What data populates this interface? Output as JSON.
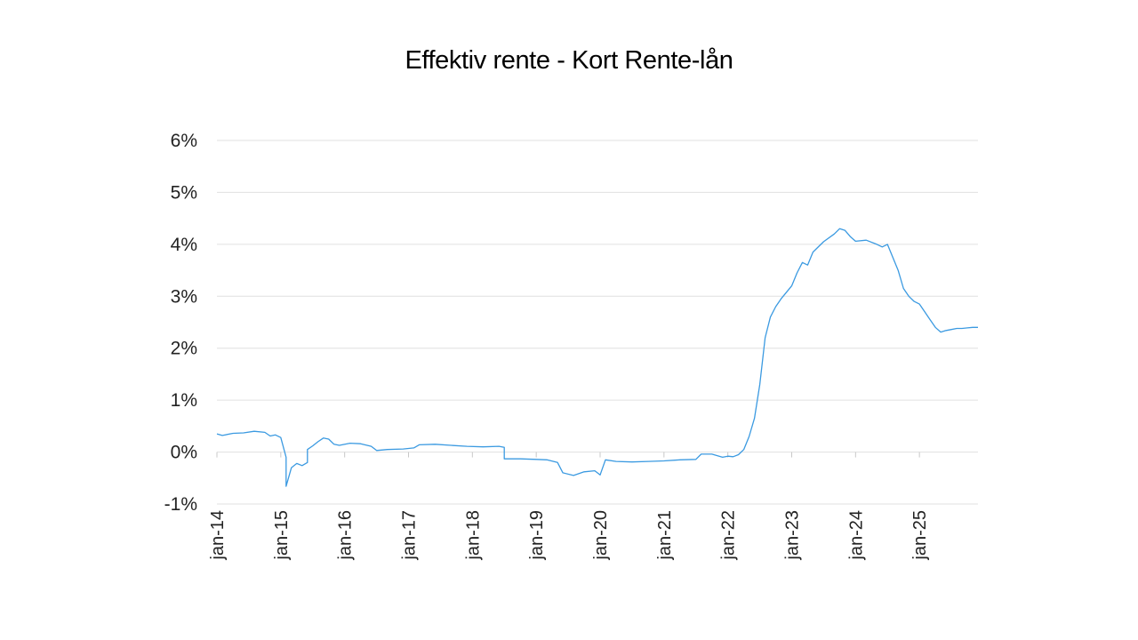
{
  "chart_data": {
    "type": "line",
    "title": "Effektiv rente - Kort Rente-lån",
    "xlabel": "",
    "ylabel": "",
    "ylim": [
      -0.01,
      0.06
    ],
    "y_ticks": [
      {
        "value": 0.06,
        "label": "6%"
      },
      {
        "value": 0.05,
        "label": "5%"
      },
      {
        "value": 0.04,
        "label": "4%"
      },
      {
        "value": 0.03,
        "label": "3%"
      },
      {
        "value": 0.02,
        "label": "2%"
      },
      {
        "value": 0.01,
        "label": "1%"
      },
      {
        "value": 0.0,
        "label": "0%"
      },
      {
        "value": -0.01,
        "label": "-1%"
      }
    ],
    "x_ticks": [
      {
        "value": "2014-01",
        "label": "jan-14"
      },
      {
        "value": "2015-01",
        "label": "jan-15"
      },
      {
        "value": "2016-01",
        "label": "jan-16"
      },
      {
        "value": "2017-01",
        "label": "jan-17"
      },
      {
        "value": "2018-01",
        "label": "jan-18"
      },
      {
        "value": "2019-01",
        "label": "jan-19"
      },
      {
        "value": "2020-01",
        "label": "jan-20"
      },
      {
        "value": "2021-01",
        "label": "jan-21"
      },
      {
        "value": "2022-01",
        "label": "jan-22"
      },
      {
        "value": "2023-01",
        "label": "jan-23"
      },
      {
        "value": "2024-01",
        "label": "jan-24"
      },
      {
        "value": "2025-01",
        "label": "jan-25"
      }
    ],
    "xlim": [
      "2014-01",
      "2025-12"
    ],
    "grid": true,
    "legend": "none",
    "series": [
      {
        "color": "#3b9ae1",
        "points": [
          [
            "2014-01",
            0.0035
          ],
          [
            "2014-02",
            0.0032
          ],
          [
            "2014-04",
            0.0036
          ],
          [
            "2014-06",
            0.0037
          ],
          [
            "2014-08",
            0.004
          ],
          [
            "2014-10",
            0.0038
          ],
          [
            "2014-11",
            0.0031
          ],
          [
            "2014-12",
            0.0033
          ],
          [
            "2015-01",
            0.0028
          ],
          [
            "2015-02",
            -0.001
          ],
          [
            "2015-02",
            -0.0066
          ],
          [
            "2015-03",
            -0.003
          ],
          [
            "2015-04",
            -0.0022
          ],
          [
            "2015-05",
            -0.0026
          ],
          [
            "2015-06",
            -0.002
          ],
          [
            "2015-06",
            0.0005
          ],
          [
            "2015-07",
            0.0012
          ],
          [
            "2015-08",
            0.002
          ],
          [
            "2015-09",
            0.0027
          ],
          [
            "2015-10",
            0.0025
          ],
          [
            "2015-11",
            0.0015
          ],
          [
            "2015-12",
            0.0013
          ],
          [
            "2016-02",
            0.0017
          ],
          [
            "2016-04",
            0.0016
          ],
          [
            "2016-06",
            0.0011
          ],
          [
            "2016-07",
            0.0003
          ],
          [
            "2016-09",
            0.0005
          ],
          [
            "2016-12",
            0.0006
          ],
          [
            "2017-02",
            0.0008
          ],
          [
            "2017-03",
            0.0014
          ],
          [
            "2017-06",
            0.0015
          ],
          [
            "2017-09",
            0.0013
          ],
          [
            "2017-12",
            0.0011
          ],
          [
            "2018-03",
            0.001
          ],
          [
            "2018-06",
            0.0011
          ],
          [
            "2018-07",
            0.0009
          ],
          [
            "2018-07",
            -0.0013
          ],
          [
            "2018-10",
            -0.0013
          ],
          [
            "2019-01",
            -0.0014
          ],
          [
            "2019-03",
            -0.0015
          ],
          [
            "2019-05",
            -0.002
          ],
          [
            "2019-06",
            -0.004
          ],
          [
            "2019-08",
            -0.0045
          ],
          [
            "2019-10",
            -0.0038
          ],
          [
            "2019-12",
            -0.0036
          ],
          [
            "2020-01",
            -0.0044
          ],
          [
            "2020-02",
            -0.0015
          ],
          [
            "2020-04",
            -0.0018
          ],
          [
            "2020-07",
            -0.0019
          ],
          [
            "2020-10",
            -0.0018
          ],
          [
            "2021-01",
            -0.0017
          ],
          [
            "2021-04",
            -0.0015
          ],
          [
            "2021-07",
            -0.0014
          ],
          [
            "2021-08",
            -0.0004
          ],
          [
            "2021-10",
            -0.0004
          ],
          [
            "2021-12",
            -0.001
          ],
          [
            "2022-01",
            -0.0008
          ],
          [
            "2022-02",
            -0.0009
          ],
          [
            "2022-03",
            -0.0005
          ],
          [
            "2022-04",
            0.0005
          ],
          [
            "2022-05",
            0.003
          ],
          [
            "2022-06",
            0.0065
          ],
          [
            "2022-07",
            0.013
          ],
          [
            "2022-08",
            0.022
          ],
          [
            "2022-09",
            0.026
          ],
          [
            "2022-10",
            0.028
          ],
          [
            "2022-11",
            0.0295
          ],
          [
            "2023-01",
            0.032
          ],
          [
            "2023-02",
            0.0345
          ],
          [
            "2023-03",
            0.0365
          ],
          [
            "2023-04",
            0.036
          ],
          [
            "2023-05",
            0.0385
          ],
          [
            "2023-07",
            0.0405
          ],
          [
            "2023-09",
            0.042
          ],
          [
            "2023-10",
            0.043
          ],
          [
            "2023-11",
            0.0427
          ],
          [
            "2023-12",
            0.0415
          ],
          [
            "2024-01",
            0.0406
          ],
          [
            "2024-03",
            0.0408
          ],
          [
            "2024-05",
            0.04
          ],
          [
            "2024-06",
            0.0395
          ],
          [
            "2024-07",
            0.04
          ],
          [
            "2024-08",
            0.0375
          ],
          [
            "2024-09",
            0.035
          ],
          [
            "2024-10",
            0.0315
          ],
          [
            "2024-11",
            0.03
          ],
          [
            "2024-12",
            0.029
          ],
          [
            "2025-01",
            0.0285
          ],
          [
            "2025-02",
            0.027
          ],
          [
            "2025-03",
            0.0255
          ],
          [
            "2025-04",
            0.024
          ],
          [
            "2025-05",
            0.0231
          ],
          [
            "2025-06",
            0.0234
          ],
          [
            "2025-07",
            0.0236
          ],
          [
            "2025-08",
            0.0238
          ],
          [
            "2025-09",
            0.0238
          ],
          [
            "2025-10",
            0.0239
          ],
          [
            "2025-11",
            0.024
          ],
          [
            "2025-12",
            0.024
          ]
        ]
      }
    ]
  }
}
